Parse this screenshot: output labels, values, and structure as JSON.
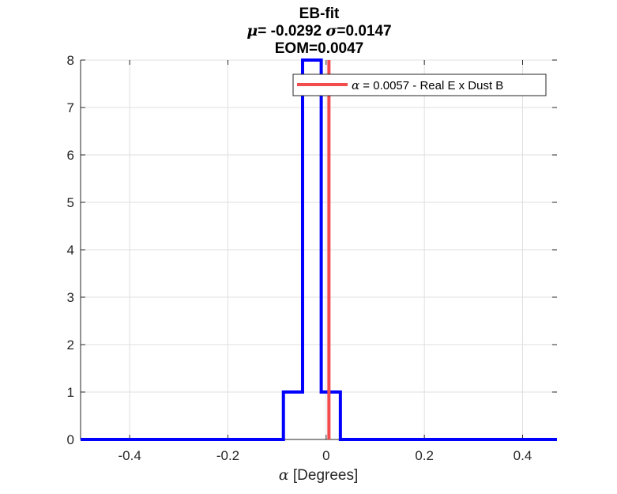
{
  "chart_data": {
    "type": "histogram",
    "title": [
      "EB-fit",
      "μ= -0.0292 σ=0.0147",
      "EOM=0.0047"
    ],
    "title_lines": [
      {
        "text": "EB-fit"
      },
      {
        "greek1": "μ",
        "text1": "= -0.0292 ",
        "greek2": "σ",
        "text2": "=0.0147"
      },
      {
        "text": "EOM=0.0047"
      }
    ],
    "xlabel": {
      "greek": "α",
      "text": " [Degrees]"
    },
    "ylabel": "",
    "xlim": [
      -0.5,
      0.47
    ],
    "ylim": [
      0,
      8
    ],
    "xticks": [
      -0.4,
      -0.2,
      0,
      0.2,
      0.4
    ],
    "xtick_labels": [
      "-0.4",
      "-0.2",
      "0",
      "0.2",
      "0.4"
    ],
    "yticks": [
      0,
      1,
      2,
      3,
      4,
      5,
      6,
      7,
      8
    ],
    "ytick_labels": [
      "0",
      "1",
      "2",
      "3",
      "4",
      "5",
      "6",
      "7",
      "8"
    ],
    "grid": true,
    "histogram": {
      "color": "#0000ff",
      "bin_edges": [
        -0.5,
        -0.087,
        -0.048,
        -0.01,
        0.029,
        0.47
      ],
      "counts": [
        0,
        1,
        8,
        1,
        0
      ]
    },
    "vline": {
      "x": 0.0057,
      "color": "#f24c4c",
      "label_greek": "α",
      "label_text": " = 0.0057 - Real E x Dust B"
    },
    "legend_position": "top-right"
  }
}
